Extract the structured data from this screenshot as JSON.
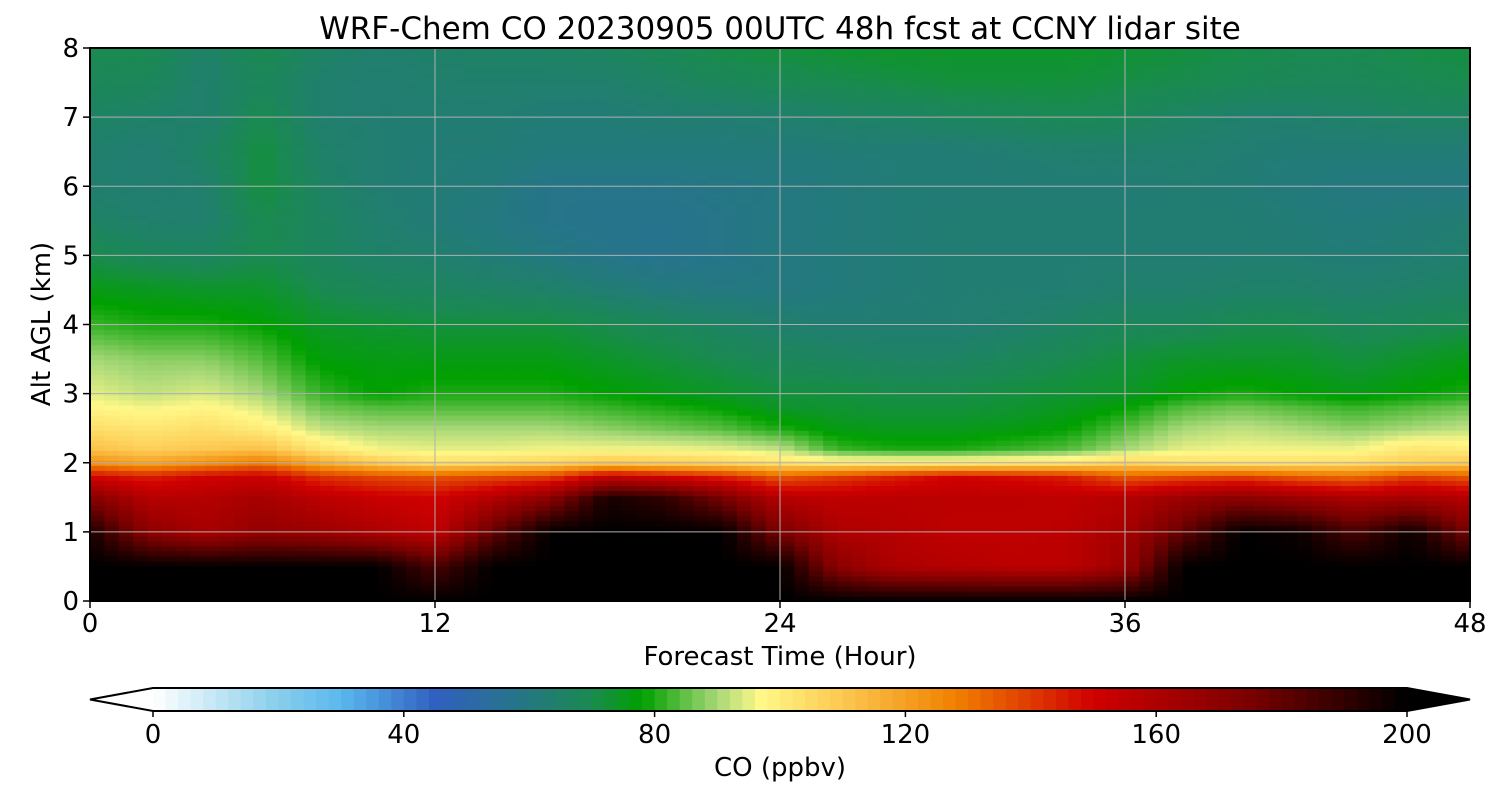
{
  "chart_data": {
    "type": "heatmap",
    "title": "WRF-Chem CO  20230905 00UTC 48h fcst at CCNY lidar site",
    "xlabel": "Forecast Time (Hour)",
    "ylabel": "Alt AGL (km)",
    "xlim": [
      0,
      48
    ],
    "ylim": [
      0,
      8
    ],
    "x_ticks": [
      0,
      12,
      24,
      36,
      48
    ],
    "y_ticks": [
      0,
      1,
      2,
      3,
      4,
      5,
      6,
      7,
      8
    ],
    "grid": true,
    "x": [
      0,
      2,
      4,
      6,
      8,
      10,
      12,
      14,
      16,
      18,
      20,
      22,
      24,
      26,
      28,
      30,
      32,
      34,
      36,
      38,
      40,
      42,
      44,
      46,
      48
    ],
    "y": [
      0,
      0.5,
      1,
      1.5,
      1.8,
      2,
      2.2,
      2.5,
      2.8,
      3,
      3.5,
      4,
      4.5,
      5,
      5.5,
      6,
      6.5,
      7,
      7.5,
      8
    ],
    "z": [
      [
        200,
        200,
        200,
        200,
        200,
        200,
        200,
        200,
        200,
        200,
        200,
        200,
        200,
        200,
        200,
        200,
        200,
        200,
        200,
        200,
        200,
        200,
        200,
        200,
        200
      ],
      [
        200,
        200,
        200,
        200,
        200,
        200,
        185,
        200,
        200,
        200,
        200,
        200,
        200,
        170,
        160,
        158,
        156,
        156,
        165,
        200,
        200,
        200,
        200,
        200,
        200
      ],
      [
        195,
        170,
        162,
        168,
        165,
        160,
        155,
        180,
        200,
        200,
        200,
        200,
        175,
        160,
        158,
        155,
        155,
        156,
        162,
        180,
        200,
        198,
        185,
        198,
        175
      ],
      [
        172,
        158,
        158,
        162,
        156,
        152,
        150,
        158,
        170,
        195,
        190,
        175,
        158,
        155,
        156,
        156,
        156,
        155,
        158,
        165,
        170,
        165,
        160,
        162,
        158
      ],
      [
        150,
        145,
        150,
        152,
        142,
        138,
        136,
        138,
        140,
        155,
        150,
        145,
        135,
        140,
        145,
        150,
        148,
        145,
        135,
        138,
        140,
        135,
        132,
        140,
        135
      ],
      [
        125,
        120,
        125,
        130,
        118,
        110,
        105,
        106,
        108,
        112,
        110,
        108,
        104,
        102,
        102,
        102,
        103,
        104,
        108,
        105,
        104,
        104,
        105,
        108,
        110
      ],
      [
        112,
        108,
        110,
        112,
        102,
        96,
        95,
        95,
        96,
        96,
        96,
        95,
        92,
        82,
        80,
        80,
        82,
        84,
        90,
        95,
        96,
        96,
        96,
        102,
        100
      ],
      [
        104,
        102,
        104,
        100,
        92,
        90,
        90,
        90,
        90,
        88,
        86,
        84,
        80,
        76,
        75,
        75,
        76,
        78,
        84,
        90,
        92,
        90,
        88,
        90,
        92
      ],
      [
        98,
        96,
        98,
        94,
        86,
        84,
        84,
        84,
        84,
        82,
        80,
        78,
        74,
        73,
        72,
        72,
        73,
        75,
        78,
        84,
        86,
        84,
        82,
        84,
        86
      ],
      [
        95,
        92,
        94,
        90,
        82,
        78,
        80,
        80,
        80,
        78,
        76,
        74,
        72,
        72,
        71,
        71,
        72,
        73,
        74,
        78,
        80,
        78,
        76,
        78,
        80
      ],
      [
        90,
        88,
        88,
        84,
        77,
        76,
        76,
        76,
        76,
        74,
        72,
        70,
        68,
        67,
        66,
        66,
        68,
        70,
        72,
        74,
        74,
        74,
        72,
        74,
        76
      ],
      [
        82,
        80,
        80,
        78,
        74,
        73,
        72,
        72,
        72,
        70,
        68,
        66,
        64,
        63,
        63,
        63,
        64,
        66,
        68,
        68,
        70,
        70,
        68,
        69,
        70
      ],
      [
        76,
        75,
        74,
        74,
        70,
        68,
        67,
        66,
        65,
        63,
        61,
        60,
        60,
        61,
        62,
        63,
        63,
        63,
        64,
        64,
        65,
        65,
        64,
        65,
        66
      ],
      [
        70,
        68,
        67,
        70,
        67,
        65,
        64,
        62,
        60,
        58,
        57,
        58,
        60,
        61,
        62,
        63,
        63,
        63,
        63,
        63,
        63,
        63,
        62,
        63,
        64
      ],
      [
        66,
        64,
        64,
        70,
        67,
        64,
        62,
        60,
        58,
        57,
        57,
        58,
        60,
        61,
        62,
        63,
        63,
        63,
        63,
        63,
        63,
        62,
        61,
        62,
        63
      ],
      [
        64,
        63,
        64,
        72,
        66,
        63,
        62,
        61,
        58,
        58,
        58,
        59,
        60,
        61,
        62,
        62,
        62,
        62,
        62,
        63,
        62,
        61,
        60,
        60,
        60
      ],
      [
        64,
        63,
        66,
        72,
        65,
        63,
        62,
        62,
        61,
        61,
        61,
        61,
        61,
        62,
        62,
        62,
        63,
        64,
        64,
        64,
        63,
        62,
        62,
        62,
        62
      ],
      [
        66,
        65,
        64,
        70,
        64,
        63,
        63,
        63,
        62,
        62,
        63,
        63,
        64,
        65,
        66,
        67,
        68,
        69,
        68,
        66,
        64,
        64,
        65,
        66,
        66
      ],
      [
        68,
        68,
        64,
        68,
        64,
        63,
        64,
        64,
        64,
        64,
        66,
        68,
        69,
        70,
        71,
        72,
        72,
        72,
        71,
        70,
        69,
        68,
        68,
        69,
        70
      ],
      [
        70,
        70,
        65,
        70,
        66,
        64,
        65,
        66,
        66,
        67,
        69,
        71,
        72,
        73,
        74,
        74,
        74,
        74,
        73,
        72,
        71,
        70,
        70,
        71,
        72
      ]
    ],
    "colorbar": {
      "label": "CO  (ppbv)",
      "min": 0,
      "max": 200,
      "ticks": [
        0,
        40,
        80,
        120,
        160,
        200
      ],
      "extend": "both",
      "stops": [
        {
          "v": 0,
          "c": "#ffffff"
        },
        {
          "v": 20,
          "c": "#87ceeb"
        },
        {
          "v": 30,
          "c": "#5ab8ee"
        },
        {
          "v": 45,
          "c": "#3060c0"
        },
        {
          "v": 60,
          "c": "#247880"
        },
        {
          "v": 70,
          "c": "#1a8a50"
        },
        {
          "v": 78,
          "c": "#00a000"
        },
        {
          "v": 90,
          "c": "#a8d878"
        },
        {
          "v": 97,
          "c": "#fff888"
        },
        {
          "v": 110,
          "c": "#fcc850"
        },
        {
          "v": 128,
          "c": "#f08000"
        },
        {
          "v": 150,
          "c": "#d00000"
        },
        {
          "v": 175,
          "c": "#7a0000"
        },
        {
          "v": 200,
          "c": "#000000"
        }
      ]
    }
  }
}
